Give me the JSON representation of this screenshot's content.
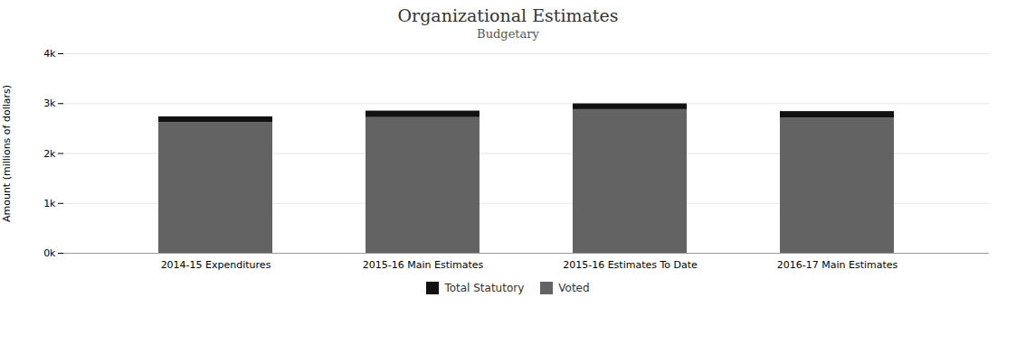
{
  "chart_data": {
    "type": "bar",
    "stacked": true,
    "title": "Organizational Estimates",
    "subtitle": "Budgetary",
    "ylabel": "Amount (millions of dollars)",
    "categories": [
      "2014-15 Expenditures",
      "2015-16 Main Estimates",
      "2015-16 Estimates To Date",
      "2016-17 Main Estimates"
    ],
    "series": [
      {
        "name": "Voted",
        "color": "#636363",
        "values": [
          2620,
          2720,
          2880,
          2710
        ]
      },
      {
        "name": "Total Statutory",
        "color": "#111111",
        "values": [
          115,
          130,
          115,
          130
        ]
      }
    ],
    "ylim": [
      0,
      4000
    ],
    "yticks": [
      {
        "value": 0,
        "label": "0k"
      },
      {
        "value": 1000,
        "label": "1k"
      },
      {
        "value": 2000,
        "label": "2k"
      },
      {
        "value": 3000,
        "label": "3k"
      },
      {
        "value": 4000,
        "label": "4k"
      }
    ],
    "grid": true,
    "legend": "bottom"
  }
}
